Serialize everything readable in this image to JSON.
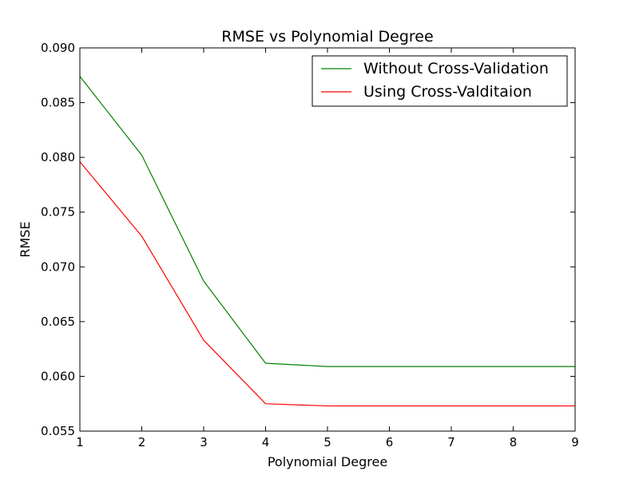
{
  "chart_data": {
    "type": "line",
    "title": "RMSE vs Polynomial Degree",
    "xlabel": "Polynomial Degree",
    "ylabel": "RMSE",
    "xlim": [
      1,
      9
    ],
    "ylim": [
      0.055,
      0.09
    ],
    "xticks": [
      1,
      2,
      3,
      4,
      5,
      6,
      7,
      8,
      9
    ],
    "yticks": [
      0.055,
      0.06,
      0.065,
      0.07,
      0.075,
      0.08,
      0.085,
      0.09
    ],
    "ytick_labels": [
      "0.055",
      "0.060",
      "0.065",
      "0.070",
      "0.075",
      "0.080",
      "0.085",
      "0.090"
    ],
    "x": [
      1,
      2,
      3,
      4,
      5,
      6,
      7,
      8,
      9
    ],
    "series": [
      {
        "name": "Without Cross-Validation",
        "color": "#008000",
        "values": [
          0.0874,
          0.0802,
          0.0687,
          0.0612,
          0.0609,
          0.0609,
          0.0609,
          0.0609,
          0.0609
        ]
      },
      {
        "name": "Using Cross-Valditaion",
        "color": "#ff0000",
        "values": [
          0.0796,
          0.0728,
          0.0633,
          0.0575,
          0.0573,
          0.0573,
          0.0573,
          0.0573,
          0.0573
        ]
      }
    ],
    "grid": false,
    "legend_position": "top-right"
  }
}
